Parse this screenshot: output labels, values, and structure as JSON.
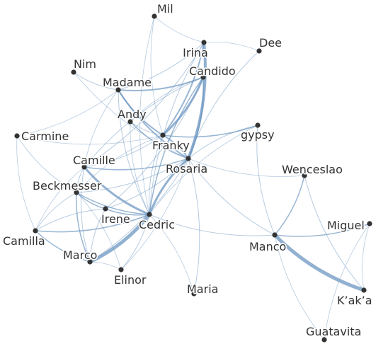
{
  "nodes": [
    {
      "id": "Mil",
      "label": "Mil"
    },
    {
      "id": "Irina",
      "label": "Irina"
    },
    {
      "id": "Dee",
      "label": "Dee"
    },
    {
      "id": "Nim",
      "label": "Nim"
    },
    {
      "id": "Candido",
      "label": "Candido"
    },
    {
      "id": "Madame",
      "label": "Madame"
    },
    {
      "id": "Andy",
      "label": "Andy"
    },
    {
      "id": "gypsy",
      "label": "gypsy"
    },
    {
      "id": "Carmine",
      "label": "Carmine"
    },
    {
      "id": "Franky",
      "label": "Franky"
    },
    {
      "id": "Camille",
      "label": "Camille"
    },
    {
      "id": "Rosaria",
      "label": "Rosaria"
    },
    {
      "id": "Wenceslao",
      "label": "Wenceslao"
    },
    {
      "id": "Beckmesser",
      "label": "Beckmesser"
    },
    {
      "id": "Irene",
      "label": "Irene"
    },
    {
      "id": "Cedric",
      "label": "Cedric"
    },
    {
      "id": "Miguel",
      "label": "Miguel"
    },
    {
      "id": "Camilla",
      "label": "Camilla"
    },
    {
      "id": "Manco",
      "label": "Manco"
    },
    {
      "id": "Marco",
      "label": "Marco"
    },
    {
      "id": "Elinor",
      "label": "Elinor"
    },
    {
      "id": "Maria",
      "label": "Maria"
    },
    {
      "id": "Kaka",
      "label": "K’ak’a"
    },
    {
      "id": "Guatavita",
      "label": "Guatavita"
    }
  ],
  "edges": [
    {
      "source": "Manco",
      "target": "Kaka",
      "weight": 5
    },
    {
      "source": "Marco",
      "target": "Cedric",
      "weight": 5
    },
    {
      "source": "Rosaria",
      "target": "Irina",
      "weight": 4
    },
    {
      "source": "Camille",
      "target": "Cedric",
      "weight": 3
    },
    {
      "source": "Rosaria",
      "target": "Cedric",
      "weight": 3
    },
    {
      "source": "Franky",
      "target": "Candido",
      "weight": 3
    },
    {
      "source": "Franky",
      "target": "Irina",
      "weight": 2
    },
    {
      "source": "Rosaria",
      "target": "Candido",
      "weight": 2
    },
    {
      "source": "Madame",
      "target": "Rosaria",
      "weight": 2
    },
    {
      "source": "Madame",
      "target": "Candido",
      "weight": 2
    },
    {
      "source": "Rosaria",
      "target": "Franky",
      "weight": 2
    },
    {
      "source": "Madame",
      "target": "Franky",
      "weight": 2
    },
    {
      "source": "Manco",
      "target": "Wenceslao",
      "weight": 1.5
    },
    {
      "source": "Manco",
      "target": "Miguel",
      "weight": 1.5
    },
    {
      "source": "Beckmesser",
      "target": "Cedric",
      "weight": 1.5
    },
    {
      "source": "Beckmesser",
      "target": "Marco",
      "weight": 1.5
    },
    {
      "source": "Irene",
      "target": "Cedric",
      "weight": 1.5
    },
    {
      "source": "Camilla",
      "target": "Cedric",
      "weight": 1.5
    },
    {
      "source": "Camilla",
      "target": "Marco",
      "weight": 1.5
    },
    {
      "source": "Camille",
      "target": "Rosaria",
      "weight": 1.5
    },
    {
      "source": "Franky",
      "target": "gypsy",
      "weight": 1.5
    },
    {
      "source": "Andy",
      "target": "Rosaria",
      "weight": 1.5
    },
    {
      "source": "Candido",
      "target": "Cedric",
      "weight": 1.5
    },
    {
      "source": "Beckmesser",
      "target": "Irene",
      "weight": 1.5
    },
    {
      "source": "Wenceslao",
      "target": "Kaka",
      "weight": 1
    },
    {
      "source": "Miguel",
      "target": "Kaka",
      "weight": 0.8
    },
    {
      "source": "Miguel",
      "target": "Guatavita",
      "weight": 0.8
    },
    {
      "source": "Manco",
      "target": "Guatavita",
      "weight": 0.8
    },
    {
      "source": "Rosaria",
      "target": "Wenceslao",
      "weight": 0.8
    },
    {
      "source": "Rosaria",
      "target": "Manco",
      "weight": 1
    },
    {
      "source": "Cedric",
      "target": "Manco",
      "weight": 1
    },
    {
      "source": "gypsy",
      "target": "Manco",
      "weight": 1
    },
    {
      "source": "Dee",
      "target": "Rosaria",
      "weight": 1
    },
    {
      "source": "Dee",
      "target": "Irina",
      "weight": 0.8
    },
    {
      "source": "Mil",
      "target": "Franky",
      "weight": 0.8
    },
    {
      "source": "Mil",
      "target": "Irina",
      "weight": 0.8
    },
    {
      "source": "Mil",
      "target": "Cedric",
      "weight": 0.8
    },
    {
      "source": "Nim",
      "target": "Madame",
      "weight": 1
    },
    {
      "source": "Nim",
      "target": "Rosaria",
      "weight": 0.8
    },
    {
      "source": "Carmine",
      "target": "Camilla",
      "weight": 0.8
    },
    {
      "source": "Carmine",
      "target": "Madame",
      "weight": 0.8
    },
    {
      "source": "Carmine",
      "target": "Franky",
      "weight": 0.8
    },
    {
      "source": "Camille",
      "target": "Franky",
      "weight": 1
    },
    {
      "source": "Camille",
      "target": "Beckmesser",
      "weight": 1
    },
    {
      "source": "Camille",
      "target": "Marco",
      "weight": 1
    },
    {
      "source": "Camille",
      "target": "Irina",
      "weight": 1
    },
    {
      "source": "Camille",
      "target": "Camilla",
      "weight": 0.8
    },
    {
      "source": "Beckmesser",
      "target": "Camilla",
      "weight": 1
    },
    {
      "source": "Beckmesser",
      "target": "Rosaria",
      "weight": 1
    },
    {
      "source": "Irene",
      "target": "Marco",
      "weight": 1
    },
    {
      "source": "Irene",
      "target": "Rosaria",
      "weight": 1
    },
    {
      "source": "Irene",
      "target": "Candido",
      "weight": 1
    },
    {
      "source": "Irene",
      "target": "Camilla",
      "weight": 1
    },
    {
      "source": "Elinor",
      "target": "Cedric",
      "weight": 1
    },
    {
      "source": "Elinor",
      "target": "Beckmesser",
      "weight": 0.8
    },
    {
      "source": "Elinor",
      "target": "Rosaria",
      "weight": 0.8
    },
    {
      "source": "Maria",
      "target": "Rosaria",
      "weight": 1
    },
    {
      "source": "Maria",
      "target": "Cedric",
      "weight": 0.8
    },
    {
      "source": "Andy",
      "target": "Franky",
      "weight": 1
    },
    {
      "source": "Andy",
      "target": "Cedric",
      "weight": 0.8
    },
    {
      "source": "Madame",
      "target": "Cedric",
      "weight": 1
    },
    {
      "source": "Madame",
      "target": "Irina",
      "weight": 1
    },
    {
      "source": "Madame",
      "target": "Camille",
      "weight": 0.8
    },
    {
      "source": "Franky",
      "target": "Cedric",
      "weight": 1
    },
    {
      "source": "Franky",
      "target": "Beckmesser",
      "weight": 0.8
    },
    {
      "source": "Candido",
      "target": "Camille",
      "weight": 1
    },
    {
      "source": "Candido",
      "target": "Andy",
      "weight": 0.8
    },
    {
      "source": "Irina",
      "target": "Cedric",
      "weight": 1
    },
    {
      "source": "gypsy",
      "target": "Rosaria",
      "weight": 1
    },
    {
      "source": "gypsy",
      "target": "Cedric",
      "weight": 0.8
    },
    {
      "source": "Carmine",
      "target": "Beckmesser",
      "weight": 0.8
    },
    {
      "source": "Marco",
      "target": "Rosaria",
      "weight": 1
    },
    {
      "source": "Elinor",
      "target": "Marco",
      "weight": 0.8
    }
  ]
}
